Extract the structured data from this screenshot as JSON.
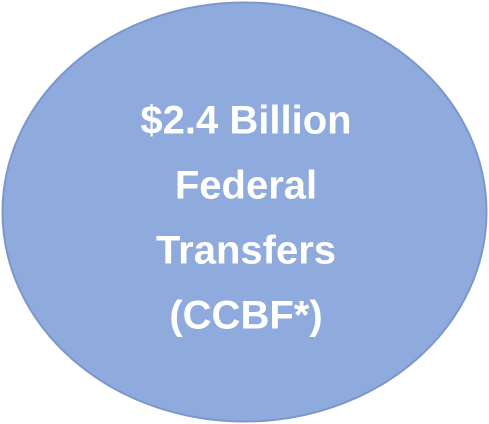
{
  "node": {
    "lines": [
      "$2.4 Billion",
      "Federal",
      "Transfers",
      "(CCBF*)"
    ]
  }
}
